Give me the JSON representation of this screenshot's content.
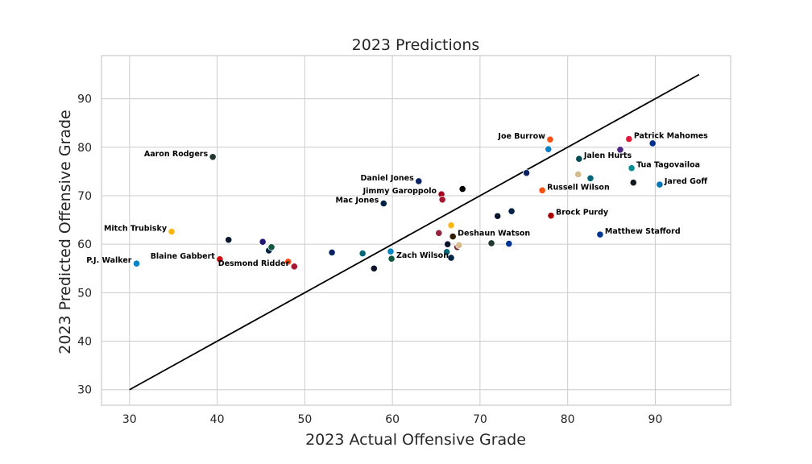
{
  "chart_data": {
    "type": "scatter",
    "title": "2023 Predictions",
    "xlabel": "2023 Actual Offensive Grade",
    "ylabel": "2023 Predicted Offensive Grade",
    "xlim": [
      26.8,
      98.6
    ],
    "ylim": [
      26.8,
      98.9
    ],
    "xticks": [
      30,
      40,
      50,
      60,
      70,
      80,
      90
    ],
    "yticks": [
      30,
      40,
      50,
      60,
      70,
      80,
      90
    ],
    "grid": true,
    "reference_line": {
      "x": [
        30,
        95
      ],
      "y": [
        30,
        95
      ],
      "color": "#000000"
    },
    "points": [
      {
        "x": 30.8,
        "y": 56.0,
        "color": "#0085ca",
        "label": "P.J. Walker",
        "label_side": "left"
      },
      {
        "x": 34.8,
        "y": 62.6,
        "color": "#ffb612",
        "label": "Mitch Trubisky",
        "label_side": "left"
      },
      {
        "x": 39.5,
        "y": 78.0,
        "color": "#203731",
        "label": "Aaron Rodgers",
        "label_side": "left"
      },
      {
        "x": 40.3,
        "y": 56.9,
        "color": "#d50a0a",
        "label": "Blaine Gabbert",
        "label_side": "left"
      },
      {
        "x": 41.3,
        "y": 60.9,
        "color": "#0b162a",
        "label": ""
      },
      {
        "x": 45.2,
        "y": 60.5,
        "color": "#241773",
        "label": ""
      },
      {
        "x": 45.9,
        "y": 58.7,
        "color": "#002244",
        "label": ""
      },
      {
        "x": 46.2,
        "y": 59.4,
        "color": "#125740",
        "label": ""
      },
      {
        "x": 48.1,
        "y": 56.4,
        "color": "#fb4f14",
        "label": ""
      },
      {
        "x": 48.8,
        "y": 55.4,
        "color": "#a71930",
        "label": "Desmond Ridder",
        "label_side": "left"
      },
      {
        "x": 53.1,
        "y": 58.3,
        "color": "#0b2265",
        "label": ""
      },
      {
        "x": 56.6,
        "y": 58.1,
        "color": "#006778",
        "label": ""
      },
      {
        "x": 57.9,
        "y": 55.0,
        "color": "#0b162a",
        "label": ""
      },
      {
        "x": 59.0,
        "y": 68.4,
        "color": "#002244",
        "label": "Mac Jones",
        "label_side": "left"
      },
      {
        "x": 59.8,
        "y": 58.5,
        "color": "#0085ca",
        "label": ""
      },
      {
        "x": 59.9,
        "y": 57.0,
        "color": "#125740",
        "label": "Zach Wilson",
        "label_side": "right"
      },
      {
        "x": 63.0,
        "y": 73.0,
        "color": "#0b2265",
        "label": "Daniel Jones",
        "label_side": "left"
      },
      {
        "x": 65.3,
        "y": 62.3,
        "color": "#97233f",
        "label": ""
      },
      {
        "x": 65.6,
        "y": 70.3,
        "color": "#a5001e",
        "label": "Jimmy Garoppolo",
        "label_side": "left"
      },
      {
        "x": 65.7,
        "y": 69.2,
        "color": "#a71930",
        "label": ""
      },
      {
        "x": 66.2,
        "y": 58.4,
        "color": "#006778",
        "label": ""
      },
      {
        "x": 66.3,
        "y": 60.0,
        "color": "#0b162a",
        "label": ""
      },
      {
        "x": 66.7,
        "y": 57.2,
        "color": "#002244",
        "label": ""
      },
      {
        "x": 66.7,
        "y": 63.9,
        "color": "#ffb612",
        "label": ""
      },
      {
        "x": 66.9,
        "y": 61.6,
        "color": "#311d00",
        "label": "Deshaun Watson",
        "label_side": "right"
      },
      {
        "x": 67.4,
        "y": 59.4,
        "color": "#773141",
        "label": ""
      },
      {
        "x": 67.6,
        "y": 59.8,
        "color": "#d3bc8d",
        "label": ""
      },
      {
        "x": 68.0,
        "y": 71.4,
        "color": "#000000",
        "label": ""
      },
      {
        "x": 71.3,
        "y": 60.2,
        "color": "#203731",
        "label": ""
      },
      {
        "x": 72.0,
        "y": 65.8,
        "color": "#0b162a",
        "label": ""
      },
      {
        "x": 73.3,
        "y": 60.1,
        "color": "#003594",
        "label": ""
      },
      {
        "x": 73.6,
        "y": 66.8,
        "color": "#002244",
        "label": ""
      },
      {
        "x": 75.3,
        "y": 74.7,
        "color": "#0b2265",
        "label": ""
      },
      {
        "x": 77.1,
        "y": 71.1,
        "color": "#fb4f14",
        "label": "Russell Wilson",
        "label_side": "right"
      },
      {
        "x": 77.8,
        "y": 79.6,
        "color": "#0080c6",
        "label": ""
      },
      {
        "x": 78.0,
        "y": 81.6,
        "color": "#fb4f14",
        "label": "Joe Burrow",
        "label_side": "left"
      },
      {
        "x": 78.1,
        "y": 65.9,
        "color": "#aa0000",
        "label": "Brock Purdy",
        "label_side": "right"
      },
      {
        "x": 81.2,
        "y": 74.4,
        "color": "#d3bc8d",
        "label": ""
      },
      {
        "x": 81.3,
        "y": 77.6,
        "color": "#004c54",
        "label": "Jalen Hurts",
        "label_side": "right"
      },
      {
        "x": 82.6,
        "y": 73.6,
        "color": "#006778",
        "label": ""
      },
      {
        "x": 83.7,
        "y": 62.0,
        "color": "#003594",
        "label": "Matthew Stafford",
        "label_side": "right"
      },
      {
        "x": 86.0,
        "y": 79.5,
        "color": "#4f2683",
        "label": ""
      },
      {
        "x": 87.0,
        "y": 81.7,
        "color": "#e31837",
        "label": "Patrick Mahomes",
        "label_side": "right"
      },
      {
        "x": 87.3,
        "y": 75.7,
        "color": "#008e97",
        "label": "Tua Tagovailoa",
        "label_side": "right"
      },
      {
        "x": 87.5,
        "y": 72.7,
        "color": "#101820",
        "label": ""
      },
      {
        "x": 89.7,
        "y": 80.8,
        "color": "#00338d",
        "label": ""
      },
      {
        "x": 90.5,
        "y": 72.3,
        "color": "#0076b6",
        "label": "Jared Goff",
        "label_side": "right"
      }
    ]
  }
}
